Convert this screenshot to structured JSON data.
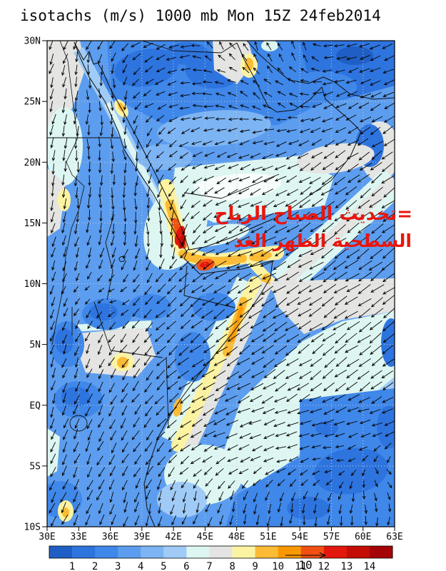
{
  "title": "isotachs (m/s) 1000 mb Mon 15Z 24feb2014",
  "annotation": {
    "line1": "=تحديث الصباح الرياح",
    "line2": "السطحية الظهر الغد",
    "color": "#e9150d"
  },
  "axes": {
    "lat_labels": [
      "30N",
      "25N",
      "20N",
      "15N",
      "10N",
      "5N",
      "EQ",
      "5S",
      "10S"
    ],
    "lon_labels": [
      "30E",
      "33E",
      "36E",
      "39E",
      "42E",
      "45E",
      "48E",
      "51E",
      "54E",
      "57E",
      "60E",
      "63E"
    ]
  },
  "map_extent": {
    "lon_min": 30,
    "lon_max": 63,
    "lat_min": -10,
    "lat_max": 30
  },
  "colorbar": {
    "labels": [
      "1",
      "2",
      "3",
      "4",
      "5",
      "6",
      "7",
      "8",
      "9",
      "10",
      "11",
      "12",
      "13",
      "14"
    ],
    "colors": [
      "#1F5FC5",
      "#2E74DF",
      "#3F87E9",
      "#5C9DEF",
      "#7DB4F3",
      "#A0CBF7",
      "#DDF6F2",
      "#E4E4E2",
      "#FCF3A2",
      "#FBBB35",
      "#FA9802",
      "#F25013",
      "#E3170C",
      "#C40D05",
      "#A40408"
    ]
  },
  "extra_colors": {
    "near_white": "#F6FDFB",
    "grid_dots": "#cfcfcf",
    "vector": "#050505",
    "frame": "#000000"
  },
  "ref_arrow": {
    "label": "10"
  },
  "wind_field": {
    "points": [
      [
        31,
        29,
        205,
        0.55
      ],
      [
        35,
        29.5,
        215,
        0.5
      ],
      [
        39,
        29.5,
        245,
        0.5
      ],
      [
        42.5,
        29,
        260,
        0.5
      ],
      [
        46,
        29.5,
        355,
        0.5
      ],
      [
        50,
        29,
        5,
        0.55
      ],
      [
        54,
        29,
        10,
        0.5
      ],
      [
        58,
        29,
        250,
        0.45
      ],
      [
        62,
        29,
        245,
        0.5
      ],
      [
        31,
        25,
        195,
        0.5
      ],
      [
        34,
        27.5,
        140,
        0.5
      ],
      [
        36,
        25.5,
        140,
        0.55
      ],
      [
        40,
        25,
        260,
        0.45
      ],
      [
        44,
        25,
        285,
        0.5
      ],
      [
        47,
        25,
        305,
        0.4
      ],
      [
        50,
        25.5,
        340,
        0.45
      ],
      [
        53,
        25,
        330,
        0.4
      ],
      [
        57,
        24,
        245,
        0.5
      ],
      [
        61,
        24,
        240,
        0.55
      ],
      [
        31,
        21,
        190,
        0.5
      ],
      [
        34,
        21,
        160,
        0.5
      ],
      [
        37.5,
        21,
        140,
        0.6
      ],
      [
        41,
        20,
        250,
        0.45
      ],
      [
        45,
        20,
        265,
        0.5
      ],
      [
        49,
        20,
        255,
        0.5
      ],
      [
        52,
        19.5,
        240,
        0.55
      ],
      [
        56,
        19.5,
        235,
        0.65
      ],
      [
        60,
        19,
        232,
        0.75
      ],
      [
        63,
        18,
        230,
        0.8
      ],
      [
        31,
        17,
        185,
        0.45
      ],
      [
        34,
        16,
        165,
        0.5
      ],
      [
        38,
        16.5,
        140,
        0.65
      ],
      [
        40.8,
        15.2,
        155,
        0.85
      ],
      [
        44,
        16,
        245,
        0.5
      ],
      [
        47.5,
        16,
        255,
        0.55
      ],
      [
        51,
        16,
        242,
        0.6
      ],
      [
        55,
        15,
        235,
        0.8
      ],
      [
        59,
        14,
        232,
        0.9
      ],
      [
        62.5,
        13.5,
        230,
        0.9
      ],
      [
        31,
        13,
        190,
        0.45
      ],
      [
        34,
        12,
        195,
        0.5
      ],
      [
        37,
        12.5,
        215,
        0.5
      ],
      [
        39.6,
        13.8,
        160,
        0.7
      ],
      [
        41.7,
        13.2,
        155,
        0.95
      ],
      [
        43.6,
        12.1,
        240,
        0.85
      ],
      [
        46,
        12.3,
        260,
        0.85
      ],
      [
        49,
        12,
        258,
        0.9
      ],
      [
        52,
        12,
        245,
        0.9
      ],
      [
        56,
        11,
        238,
        0.95
      ],
      [
        60,
        11,
        235,
        0.95
      ],
      [
        31,
        9,
        190,
        0.4
      ],
      [
        34,
        9.5,
        10,
        0.35
      ],
      [
        36.5,
        9,
        5,
        0.4
      ],
      [
        39,
        8,
        225,
        0.5
      ],
      [
        41.5,
        8,
        230,
        0.6
      ],
      [
        44,
        8,
        232,
        0.75
      ],
      [
        47,
        7.5,
        235,
        0.9
      ],
      [
        50,
        7,
        237,
        0.95
      ],
      [
        53,
        7,
        235,
        0.9
      ],
      [
        57,
        6,
        235,
        0.9
      ],
      [
        61,
        6,
        233,
        0.9
      ],
      [
        31,
        4,
        190,
        0.4
      ],
      [
        34,
        4,
        185,
        0.35
      ],
      [
        37,
        3,
        200,
        0.4
      ],
      [
        40,
        2,
        215,
        0.5
      ],
      [
        43,
        2,
        235,
        0.8
      ],
      [
        46,
        2.5,
        240,
        0.9
      ],
      [
        49,
        2,
        238,
        0.85
      ],
      [
        52,
        2,
        235,
        0.8
      ],
      [
        56,
        2,
        230,
        0.8
      ],
      [
        60,
        2,
        228,
        0.8
      ],
      [
        31,
        0,
        185,
        0.4
      ],
      [
        34,
        -1,
        190,
        0.4
      ],
      [
        37,
        -1,
        195,
        0.45
      ],
      [
        40,
        -1.5,
        220,
        0.6
      ],
      [
        43,
        -1,
        245,
        0.7
      ],
      [
        46,
        -1.5,
        255,
        0.7
      ],
      [
        49,
        -1,
        260,
        0.7
      ],
      [
        52,
        -1,
        265,
        0.6
      ],
      [
        56,
        -1,
        270,
        0.55
      ],
      [
        60,
        -1,
        275,
        0.5
      ],
      [
        31,
        -4,
        195,
        0.45
      ],
      [
        34,
        -4.5,
        200,
        0.45
      ],
      [
        37,
        -4,
        205,
        0.5
      ],
      [
        40,
        -4,
        215,
        0.55
      ],
      [
        44,
        -4,
        250,
        0.5
      ],
      [
        48,
        -4,
        265,
        0.5
      ],
      [
        52,
        -4,
        280,
        0.4
      ],
      [
        57,
        -4.5,
        15,
        0.3
      ],
      [
        62,
        -6,
        85,
        0.35
      ],
      [
        31,
        -8,
        200,
        0.5
      ],
      [
        34,
        -8,
        210,
        0.5
      ],
      [
        37,
        -8.5,
        185,
        0.45
      ],
      [
        40,
        -8,
        175,
        0.45
      ],
      [
        44,
        -8,
        165,
        0.4
      ],
      [
        48,
        -8,
        170,
        0.4
      ],
      [
        50,
        -9,
        170,
        0.45
      ],
      [
        54,
        -9,
        160,
        0.4
      ],
      [
        58,
        -9,
        175,
        0.4
      ],
      [
        61,
        -8,
        150,
        0.35
      ]
    ]
  }
}
